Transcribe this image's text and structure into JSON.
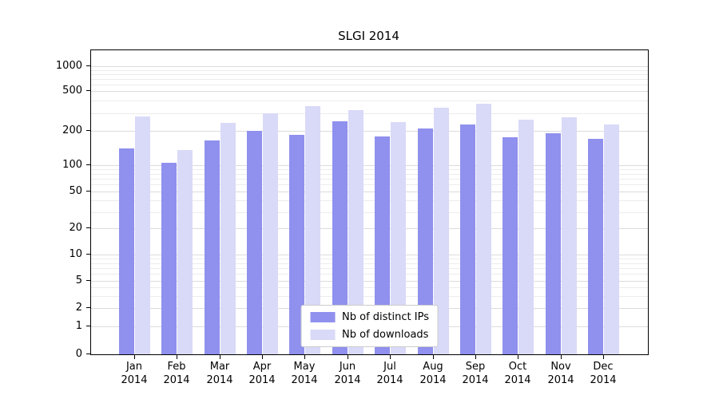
{
  "chart_data": {
    "type": "bar",
    "title": "SLGI 2014",
    "months": [
      "Jan",
      "Feb",
      "Mar",
      "Apr",
      "May",
      "Jun",
      "Jul",
      "Aug",
      "Sep",
      "Oct",
      "Nov",
      "Dec"
    ],
    "year": "2014",
    "series": [
      {
        "name": "Nb of distinct IPs",
        "color": "#9090ee",
        "values": [
          140,
          105,
          165,
          200,
          185,
          250,
          180,
          210,
          230,
          175,
          190,
          170
        ]
      },
      {
        "name": "Nb of downloads",
        "color": "#d9d9f8",
        "values": [
          280,
          135,
          240,
          300,
          350,
          320,
          245,
          340,
          370,
          260,
          275,
          230
        ]
      }
    ],
    "y_ticks": [
      0,
      1,
      2,
      5,
      10,
      20,
      50,
      100,
      200,
      500,
      1000
    ],
    "ylim": [
      0,
      1000
    ],
    "yscale": "log-with-zero (symlog)",
    "xlabel": "",
    "ylabel": "",
    "grid": true,
    "legend_position": "bottom-center"
  }
}
